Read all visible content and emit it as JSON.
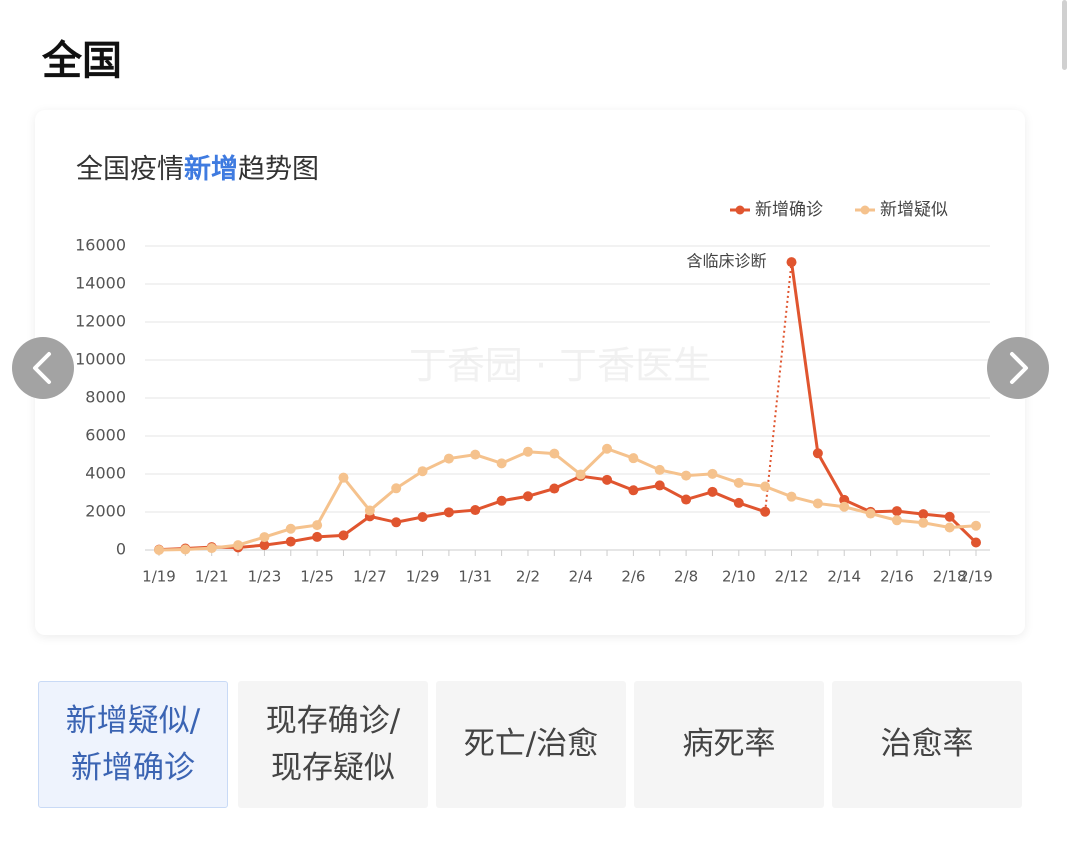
{
  "page": {
    "heading": "全国",
    "tabs": [
      [
        "新增疑似/",
        "新增确诊"
      ],
      [
        "现存确诊/",
        "现存疑似"
      ],
      [
        "死亡/治愈"
      ],
      [
        "病死率"
      ],
      [
        "治愈率"
      ]
    ],
    "active_tab": 0
  },
  "chart_data": {
    "type": "line",
    "title_parts": [
      "全国疫情",
      "新增",
      "趋势图"
    ],
    "watermark": "丁香园 · 丁香医生",
    "categories": [
      "1/19",
      null,
      "1/21",
      null,
      "1/23",
      null,
      "1/25",
      null,
      "1/27",
      null,
      "1/29",
      null,
      "1/31",
      null,
      "2/2",
      null,
      "2/4",
      null,
      "2/6",
      null,
      "2/8",
      null,
      "2/10",
      null,
      "2/12",
      null,
      "2/14",
      null,
      "2/16",
      null,
      "2/18",
      "2/19"
    ],
    "series": [
      {
        "name": "新增确诊",
        "color": "#e0552f",
        "values": [
          20,
          77,
          149,
          131,
          259,
          444,
          688,
          769,
          1771,
          1459,
          1737,
          1982,
          2102,
          2590,
          2829,
          3235,
          3887,
          3694,
          3143,
          3399,
          2656,
          3062,
          2478,
          2015,
          15152,
          5090,
          2641,
          2009,
          2048,
          1886,
          1749,
          394
        ]
      },
      {
        "name": "新增疑似",
        "color": "#f5c28d",
        "values": [
          0,
          27,
          100,
          257,
          680,
          1118,
          1309,
          3806,
          2077,
          3248,
          4148,
          4812,
          5019,
          4562,
          5173,
          5072,
          3971,
          5328,
          4833,
          4214,
          3916,
          4008,
          3536,
          3342,
          2807,
          2450,
          2277,
          1918,
          1563,
          1432,
          1185,
          1277
        ]
      }
    ],
    "annotation": {
      "text": "含临床诊断",
      "category": "2/12",
      "series": 0
    },
    "ylim": [
      0,
      16000
    ],
    "yticks": [
      0,
      2000,
      4000,
      6000,
      8000,
      10000,
      12000,
      14000,
      16000
    ],
    "grid": true,
    "legend": "top-right"
  }
}
